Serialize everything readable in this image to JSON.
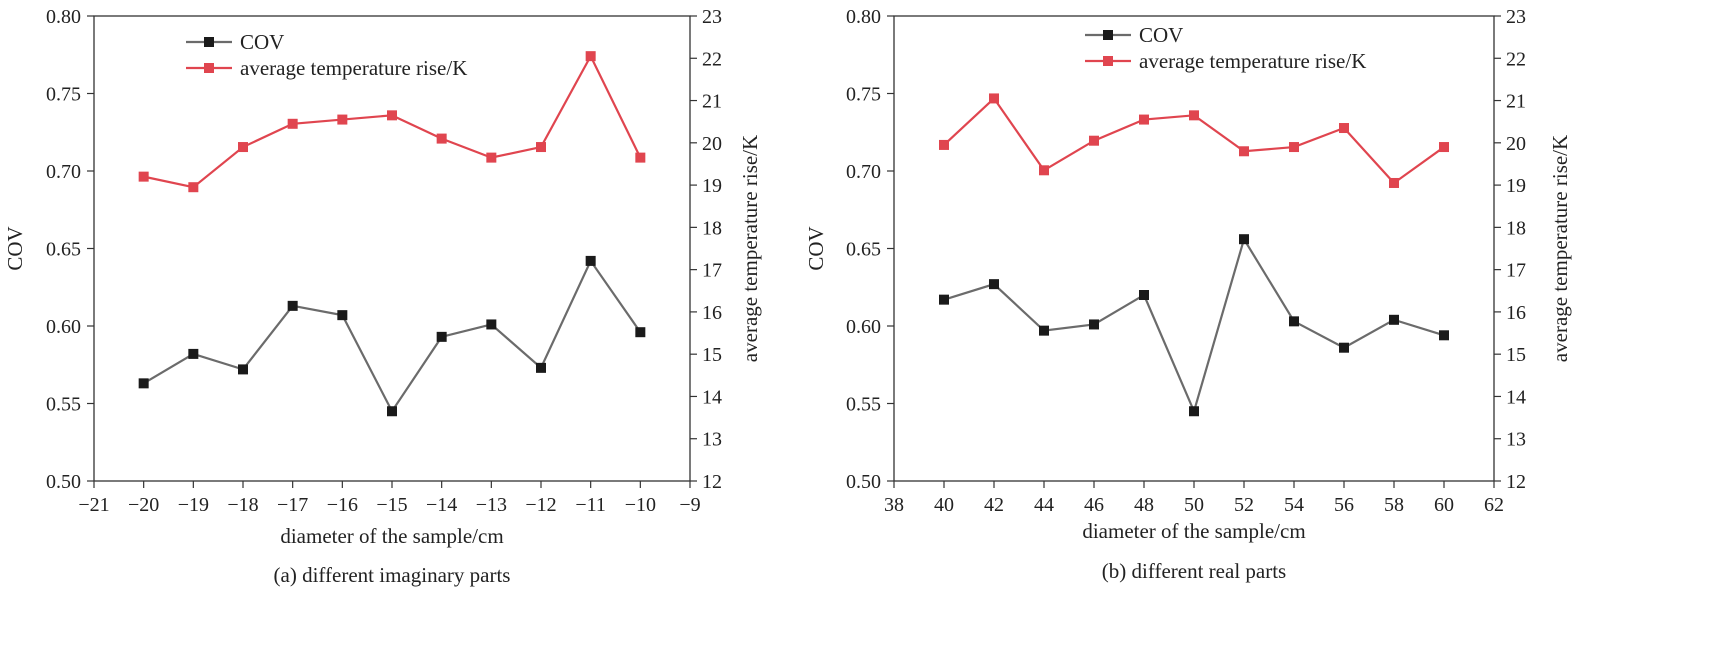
{
  "chart_data": [
    {
      "type": "line",
      "caption": "(a) different imaginary parts",
      "xlabel": "diameter of the sample/cm",
      "ylabel_left": "COV",
      "ylabel_right": "average temperature rise/K",
      "xlim": [
        -21,
        -9
      ],
      "ylim_left": [
        0.5,
        0.8
      ],
      "ylim_right": [
        12,
        23
      ],
      "x_ticks": [
        "−21",
        "−20",
        "−19",
        "−18",
        "−17",
        "−16",
        "−15",
        "−14",
        "−13",
        "−12",
        "−11",
        "−10",
        "−9"
      ],
      "y_left_ticks": [
        "0.50",
        "0.55",
        "0.60",
        "0.65",
        "0.70",
        "0.75",
        "0.80"
      ],
      "y_right_ticks": [
        "12",
        "13",
        "14",
        "15",
        "16",
        "17",
        "18",
        "19",
        "20",
        "21",
        "22",
        "23"
      ],
      "grid": false,
      "legend_position": "top-left",
      "x": [
        -20,
        -19,
        -18,
        -17,
        -16,
        -15,
        -14,
        -13,
        -12,
        -11,
        -10
      ],
      "series": [
        {
          "name": "COV",
          "axis": "left",
          "color": "#6b6b6b",
          "marker_color": "#1a1a1a",
          "values": [
            0.563,
            0.582,
            0.572,
            0.613,
            0.607,
            0.545,
            0.593,
            0.601,
            0.573,
            0.642,
            0.596
          ]
        },
        {
          "name": "average temperature rise/K",
          "axis": "right",
          "color": "#e0454f",
          "marker_color": "#e0454f",
          "values": [
            19.2,
            18.95,
            19.9,
            20.45,
            20.55,
            20.65,
            20.1,
            19.65,
            19.9,
            22.05,
            19.65
          ]
        }
      ]
    },
    {
      "type": "line",
      "caption": "(b) different real parts",
      "xlabel": "diameter of the sample/cm",
      "ylabel_left": "COV",
      "ylabel_right": "average temperature rise/K",
      "xlim": [
        38,
        62
      ],
      "ylim_left": [
        0.5,
        0.8
      ],
      "ylim_right": [
        12,
        23
      ],
      "x_ticks": [
        "38",
        "40",
        "42",
        "44",
        "46",
        "48",
        "50",
        "52",
        "54",
        "56",
        "58",
        "60",
        "62"
      ],
      "y_left_ticks": [
        "0.50",
        "0.55",
        "0.60",
        "0.65",
        "0.70",
        "0.75",
        "0.80"
      ],
      "y_right_ticks": [
        "12",
        "13",
        "14",
        "15",
        "16",
        "17",
        "18",
        "19",
        "20",
        "21",
        "22",
        "23"
      ],
      "grid": false,
      "legend_position": "top-center",
      "x": [
        40,
        42,
        44,
        46,
        48,
        50,
        52,
        54,
        56,
        58,
        60
      ],
      "series": [
        {
          "name": "COV",
          "axis": "left",
          "color": "#6b6b6b",
          "marker_color": "#1a1a1a",
          "values": [
            0.617,
            0.627,
            0.597,
            0.601,
            0.62,
            0.545,
            0.656,
            0.603,
            0.586,
            0.604,
            0.594
          ]
        },
        {
          "name": "average temperature rise/K",
          "axis": "right",
          "color": "#e0454f",
          "marker_color": "#e0454f",
          "values": [
            19.95,
            21.05,
            19.35,
            20.05,
            20.55,
            20.65,
            19.8,
            19.9,
            20.35,
            19.05,
            19.9
          ]
        }
      ]
    }
  ]
}
